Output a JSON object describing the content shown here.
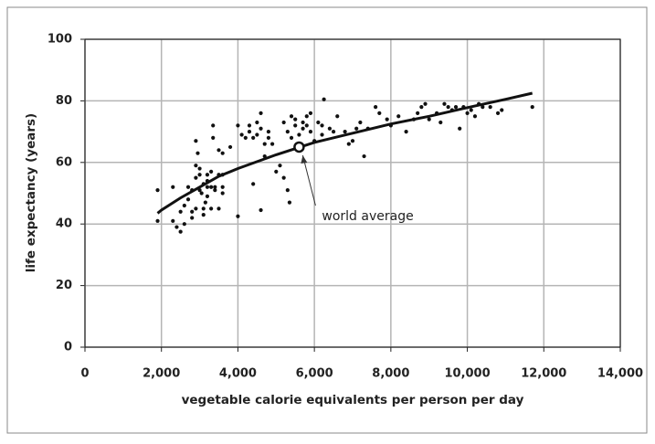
{
  "chart_data": {
    "type": "scatter",
    "x_label": "vegetable calorie equivalents per person per day",
    "y_label": "life expectancy (years)",
    "xlim": [
      0,
      14000
    ],
    "ylim": [
      0,
      100
    ],
    "xticks": [
      0,
      {
        "value": 2000,
        "label": "2,000"
      },
      {
        "value": 4000,
        "label": "4,000"
      },
      {
        "value": 6000,
        "label": "6,000"
      },
      {
        "value": 8000,
        "label": "8,000"
      },
      {
        "value": 10000,
        "label": "10,000"
      },
      {
        "value": 12000,
        "label": "12,000"
      },
      {
        "value": 14000,
        "label": "14,000"
      }
    ],
    "yticks": [
      0,
      20,
      40,
      60,
      80,
      100
    ],
    "grid": true,
    "color": "#111111",
    "x": [
      1900,
      1900,
      2300,
      2300,
      2400,
      2500,
      2500,
      2600,
      2600,
      2700,
      2700,
      2800,
      2800,
      2800,
      2900,
      2900,
      2900,
      2900,
      2950,
      3000,
      3000,
      3000,
      3050,
      3100,
      3100,
      3100,
      3150,
      3200,
      3200,
      3200,
      3200,
      3300,
      3300,
      3300,
      3350,
      3350,
      3400,
      3400,
      3500,
      3500,
      3500,
      3600,
      3600,
      3600,
      3600,
      3800,
      4000,
      4000,
      4100,
      4200,
      4300,
      4300,
      4400,
      4400,
      4500,
      4500,
      4600,
      4600,
      4600,
      4700,
      4700,
      4800,
      4800,
      4900,
      5000,
      5100,
      5200,
      5200,
      5300,
      5300,
      5350,
      5400,
      5400,
      5500,
      5500,
      5600,
      5700,
      5700,
      5800,
      5800,
      5900,
      5900,
      6000,
      6100,
      6200,
      6200,
      6250,
      6400,
      6500,
      6600,
      6800,
      6900,
      7000,
      7100,
      7200,
      7300,
      7400,
      7600,
      7700,
      7900,
      8000,
      8200,
      8400,
      8600,
      8700,
      8800,
      8900,
      9000,
      9200,
      9300,
      9400,
      9500,
      9600,
      9700,
      9800,
      9900,
      10000,
      10100,
      10200,
      10300,
      10400,
      10600,
      10800,
      10900,
      11700
    ],
    "values": [
      51,
      41,
      52,
      41,
      39,
      37.5,
      44,
      46,
      40,
      52,
      48,
      51,
      44,
      42,
      59,
      67,
      55,
      45,
      63,
      58,
      56,
      51,
      50,
      53,
      45,
      43,
      47,
      56,
      54,
      52,
      49,
      57,
      52,
      45,
      68,
      72,
      52,
      51,
      64,
      56,
      45,
      63,
      56,
      52,
      50,
      65,
      72,
      42.5,
      69,
      68,
      72,
      70,
      68,
      53,
      73,
      69,
      76,
      71,
      44.5,
      66,
      62,
      70,
      68,
      66,
      57,
      59,
      55,
      73,
      70,
      51,
      47,
      75,
      68,
      74,
      72,
      69,
      73,
      71,
      75,
      72,
      76,
      70,
      67,
      73,
      72,
      69,
      80.5,
      71,
      70,
      75,
      70,
      66,
      67,
      71,
      73,
      62,
      71,
      78,
      76,
      74,
      72,
      75,
      70,
      74,
      76,
      78,
      79,
      74,
      76,
      73,
      79,
      78,
      77,
      78,
      71,
      78,
      76,
      77,
      75,
      79,
      78,
      78,
      76,
      77,
      78
    ],
    "trend": {
      "color": "#111111",
      "x": [
        1900,
        2000,
        2500,
        3000,
        3500,
        4000,
        5000,
        6000,
        7000,
        8000,
        9000,
        10000,
        11000,
        11700
      ],
      "values": [
        43.5,
        44.5,
        48.5,
        52,
        55.5,
        58,
        62.5,
        66.5,
        69.5,
        72.5,
        75,
        77.8,
        80.5,
        82.5
      ]
    },
    "highlight": {
      "label": "world average",
      "x": 5600,
      "y": 65
    }
  }
}
